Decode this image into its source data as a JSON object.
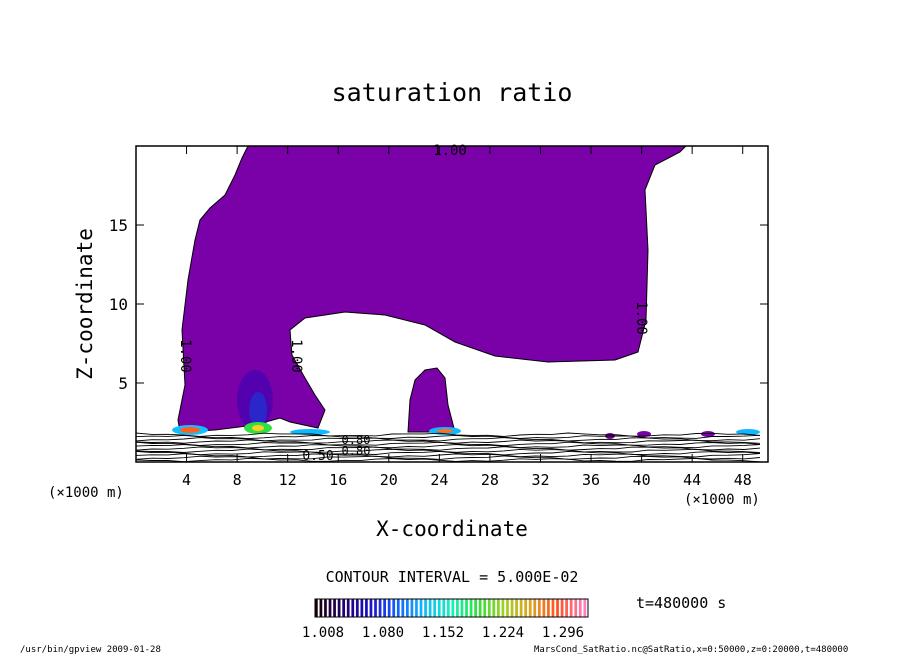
{
  "chart_data": {
    "type": "contour",
    "title": "saturation ratio",
    "xlabel": "X-coordinate",
    "ylabel": "Z-coordinate",
    "x_unit": "(×1000 m)",
    "x_unit_right": "(×1000 m)",
    "xlim": [
      0,
      50
    ],
    "ylim": [
      0,
      20
    ],
    "x_ticks": [
      4,
      8,
      12,
      16,
      20,
      24,
      28,
      32,
      36,
      40,
      44,
      48
    ],
    "y_ticks": [
      5,
      10,
      15
    ],
    "contour_labels": [
      "1.00",
      "1.00",
      "1.00",
      "1.00",
      "0.50",
      "0.80",
      "0.80"
    ],
    "contour_interval": "CONTOUR INTERVAL = 5.000E-02",
    "time": "t=480000 s",
    "colorbar": {
      "tick_labels": [
        "1.008",
        "1.080",
        "1.152",
        "1.224",
        "1.296"
      ],
      "colors": [
        "#1a0000",
        "#20006a",
        "#1a10c8",
        "#1060ff",
        "#10b8ff",
        "#10f0c0",
        "#30e040",
        "#a0d020",
        "#e0a020",
        "#ff5020",
        "#ff80c0"
      ]
    },
    "fill_color": "#7a00a8",
    "footer_left": "/usr/bin/gpview  2009-01-28",
    "footer_right": "MarsCond_SatRatio.nc@SatRatio,x=0:50000,z=0:20000,t=480000"
  }
}
